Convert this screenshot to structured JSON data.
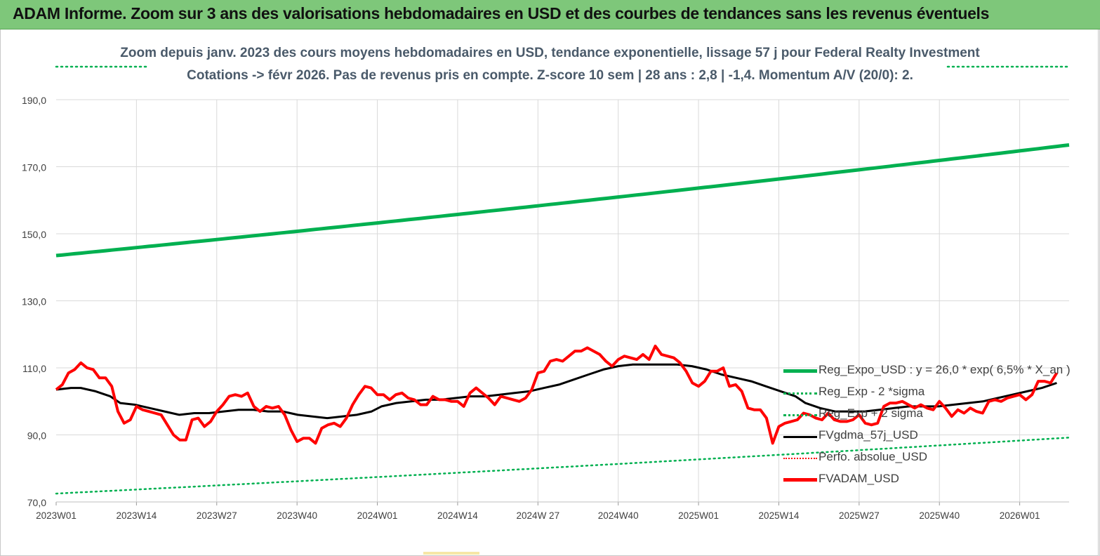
{
  "banner": {
    "title": "ADAM Informe. Zoom sur 3 ans des valorisations hebdomadaires en USD et des courbes de tendances sans les revenus éventuels"
  },
  "colors": {
    "banner_bg": "#7ec77a",
    "trend_green": "#00b050",
    "price_red": "#ff0000",
    "smooth_black": "#000000",
    "grid": "#d9d9d9",
    "subtitle": "#4a5a6a"
  },
  "chart_data": {
    "type": "line",
    "title_line1": "Zoom depuis janv. 2023 des cours moyens hebdomadaires en USD, tendance exponentielle, lissage 57 j pour Federal Realty Investment",
    "title_line2": "Cotations -> févr 2026. Pas de revenus pris en compte. Z-score 10 sem | 28 ans : 2,8 | -1,4. Momentum A/V (20/0): 2.",
    "x_tick_labels": [
      "2023W01",
      "2023W14",
      "2023W27",
      "2023W40",
      "2024W01",
      "2024W14",
      "2024W 27",
      "2024W40",
      "2025W01",
      "2025W14",
      "2025W27",
      "2025W40",
      "2026W01"
    ],
    "y_tick_labels": [
      "70,0",
      "90,0",
      "110,0",
      "130,0",
      "150,0",
      "170,0",
      "190,0"
    ],
    "ylim": [
      70,
      190
    ],
    "week_count": 165,
    "grid": true,
    "legend_position": "right",
    "series": [
      {
        "name": "Reg_Expo_USD : y = 26,0 * exp( 6,5% *  X_an )",
        "style": "solid-thick",
        "color": "#00b050",
        "start": 143.5,
        "end": 176.5
      },
      {
        "name": "Reg_Exp - 2 *sigma",
        "style": "dotted",
        "color": "#00b050",
        "start": 72.5,
        "end": 89.2
      },
      {
        "name": "Reg_Exp + 2 sigma",
        "style": "dotted",
        "color": "#00b050",
        "start": 199.5,
        "end": 199.5,
        "note_visible": "above plot"
      },
      {
        "name": "FVgdma_57j_USD",
        "style": "solid",
        "color": "#000000",
        "points": [
          [
            0,
            103.5
          ],
          [
            3,
            104
          ],
          [
            5,
            104
          ],
          [
            8,
            103
          ],
          [
            11,
            101.5
          ],
          [
            13,
            99.5
          ],
          [
            16,
            99
          ],
          [
            19,
            98
          ],
          [
            22,
            97
          ],
          [
            25,
            96
          ],
          [
            28,
            96.5
          ],
          [
            31,
            96.5
          ],
          [
            34,
            97
          ],
          [
            37,
            97.5
          ],
          [
            40,
            97.5
          ],
          [
            43,
            97
          ],
          [
            46,
            97
          ],
          [
            49,
            96
          ],
          [
            52,
            95.5
          ],
          [
            55,
            95
          ],
          [
            58,
            95.5
          ],
          [
            61,
            96
          ],
          [
            64,
            97
          ],
          [
            66,
            98.5
          ],
          [
            69,
            99.5
          ],
          [
            72,
            100
          ],
          [
            75,
            100.5
          ],
          [
            78,
            100.5
          ],
          [
            81,
            101
          ],
          [
            84,
            101.5
          ],
          [
            87,
            101.5
          ],
          [
            90,
            102
          ],
          [
            93,
            102.5
          ],
          [
            96,
            103
          ],
          [
            99,
            104
          ],
          [
            102,
            105
          ],
          [
            105,
            106.5
          ],
          [
            108,
            108
          ],
          [
            111,
            109.5
          ],
          [
            114,
            110.5
          ],
          [
            117,
            111
          ],
          [
            120,
            111
          ],
          [
            123,
            111
          ],
          [
            126,
            111
          ],
          [
            129,
            110.5
          ],
          [
            132,
            109.5
          ],
          [
            135,
            108
          ],
          [
            138,
            107
          ],
          [
            141,
            106
          ],
          [
            144,
            104.5
          ],
          [
            147,
            103
          ],
          [
            150,
            101.5
          ],
          [
            152,
            99.5
          ],
          [
            155,
            98
          ],
          [
            158,
            97
          ],
          [
            161,
            97
          ],
          [
            164,
            97
          ],
          [
            167,
            97.5
          ],
          [
            170,
            98
          ],
          [
            173,
            98.5
          ],
          [
            176,
            98.5
          ],
          [
            179,
            98.5
          ],
          [
            182,
            99
          ],
          [
            185,
            99.5
          ],
          [
            188,
            100
          ],
          [
            191,
            101
          ],
          [
            194,
            102
          ],
          [
            197,
            103
          ],
          [
            200,
            104
          ],
          [
            203,
            105.5
          ]
        ]
      },
      {
        "name": "Perfo. absolue_USD",
        "style": "dotted",
        "color": "#ff0000"
      },
      {
        "name": "FVADAM_USD",
        "style": "solid-thick",
        "color": "#ff0000",
        "points": [
          [
            0,
            103.5
          ],
          [
            1,
            105
          ],
          [
            2,
            108.5
          ],
          [
            3,
            109.5
          ],
          [
            4,
            111.5
          ],
          [
            5,
            110
          ],
          [
            6,
            109.5
          ],
          [
            7,
            107
          ],
          [
            8,
            107
          ],
          [
            9,
            104.5
          ],
          [
            10,
            97
          ],
          [
            11,
            93.5
          ],
          [
            12,
            94.5
          ],
          [
            13,
            98.5
          ],
          [
            14,
            97.5
          ],
          [
            15,
            97
          ],
          [
            16,
            96.5
          ],
          [
            17,
            96
          ],
          [
            18,
            93
          ],
          [
            19,
            90
          ],
          [
            20,
            88.5
          ],
          [
            21,
            88.5
          ],
          [
            22,
            94.5
          ],
          [
            23,
            95
          ],
          [
            24,
            92.5
          ],
          [
            25,
            94
          ],
          [
            26,
            97
          ],
          [
            27,
            99
          ],
          [
            28,
            101.5
          ],
          [
            29,
            102
          ],
          [
            30,
            101.5
          ],
          [
            31,
            102.5
          ],
          [
            32,
            98.5
          ],
          [
            33,
            97
          ],
          [
            34,
            98.5
          ],
          [
            35,
            98
          ],
          [
            36,
            98.5
          ],
          [
            37,
            96
          ],
          [
            38,
            91.5
          ],
          [
            39,
            88
          ],
          [
            40,
            89
          ],
          [
            41,
            89
          ],
          [
            42,
            87.5
          ],
          [
            43,
            92
          ],
          [
            44,
            93
          ],
          [
            45,
            93.5
          ],
          [
            46,
            92.5
          ],
          [
            47,
            95
          ],
          [
            48,
            99
          ],
          [
            49,
            102
          ],
          [
            50,
            104.5
          ],
          [
            51,
            104
          ],
          [
            52,
            102
          ],
          [
            53,
            102
          ],
          [
            54,
            100.5
          ],
          [
            55,
            102
          ],
          [
            56,
            102.5
          ],
          [
            57,
            101
          ],
          [
            58,
            100.5
          ],
          [
            59,
            99
          ],
          [
            60,
            99
          ],
          [
            61,
            101.5
          ],
          [
            62,
            100.5
          ],
          [
            63,
            100.5
          ],
          [
            64,
            100
          ],
          [
            65,
            100
          ],
          [
            66,
            98.5
          ],
          [
            67,
            102.5
          ],
          [
            68,
            104
          ],
          [
            69,
            102.5
          ],
          [
            70,
            101
          ],
          [
            71,
            99
          ],
          [
            72,
            101.5
          ],
          [
            73,
            101
          ],
          [
            74,
            100.5
          ],
          [
            75,
            100
          ],
          [
            76,
            101
          ],
          [
            77,
            103.5
          ],
          [
            78,
            108.5
          ],
          [
            79,
            109
          ],
          [
            80,
            112
          ],
          [
            81,
            112.5
          ],
          [
            82,
            112
          ],
          [
            83,
            113.5
          ],
          [
            84,
            115
          ],
          [
            85,
            115
          ],
          [
            86,
            116
          ],
          [
            87,
            115
          ],
          [
            88,
            114
          ],
          [
            89,
            112
          ],
          [
            90,
            110.5
          ],
          [
            91,
            112.5
          ],
          [
            92,
            113.5
          ],
          [
            93,
            113
          ],
          [
            94,
            112.5
          ],
          [
            95,
            114
          ],
          [
            96,
            112.5
          ],
          [
            97,
            116.5
          ],
          [
            98,
            114
          ],
          [
            99,
            113.5
          ],
          [
            100,
            113
          ],
          [
            101,
            111.5
          ],
          [
            102,
            109
          ],
          [
            103,
            105.5
          ],
          [
            104,
            104.5
          ],
          [
            105,
            106
          ],
          [
            106,
            109
          ],
          [
            107,
            109
          ],
          [
            108,
            110
          ],
          [
            109,
            104.5
          ],
          [
            110,
            105
          ],
          [
            111,
            103
          ],
          [
            112,
            98
          ],
          [
            113,
            97.5
          ],
          [
            114,
            97.5
          ],
          [
            115,
            95
          ],
          [
            116,
            87.5
          ],
          [
            117,
            92.5
          ],
          [
            118,
            93.5
          ],
          [
            119,
            94
          ],
          [
            120,
            94.5
          ],
          [
            121,
            96.5
          ],
          [
            122,
            96
          ],
          [
            123,
            95
          ],
          [
            124,
            94.5
          ],
          [
            125,
            96.5
          ],
          [
            126,
            94.5
          ],
          [
            127,
            94
          ],
          [
            128,
            94
          ],
          [
            129,
            94.5
          ],
          [
            130,
            96
          ],
          [
            131,
            93.5
          ],
          [
            132,
            93
          ],
          [
            133,
            93.5
          ],
          [
            134,
            98.5
          ],
          [
            135,
            99.5
          ],
          [
            136,
            99.5
          ],
          [
            137,
            100
          ],
          [
            138,
            99
          ],
          [
            139,
            98
          ],
          [
            140,
            99
          ],
          [
            141,
            98
          ],
          [
            142,
            97.5
          ],
          [
            143,
            100
          ],
          [
            144,
            98
          ],
          [
            145,
            95.5
          ],
          [
            146,
            97.5
          ],
          [
            147,
            96.5
          ],
          [
            148,
            98
          ],
          [
            149,
            97
          ],
          [
            150,
            96.5
          ],
          [
            151,
            100
          ],
          [
            152,
            100.5
          ],
          [
            153,
            100
          ],
          [
            154,
            101
          ],
          [
            155,
            101.5
          ],
          [
            156,
            102
          ],
          [
            157,
            100.5
          ],
          [
            158,
            102
          ],
          [
            159,
            106
          ],
          [
            160,
            106
          ],
          [
            161,
            105.5
          ],
          [
            162,
            108.5
          ]
        ]
      }
    ]
  }
}
